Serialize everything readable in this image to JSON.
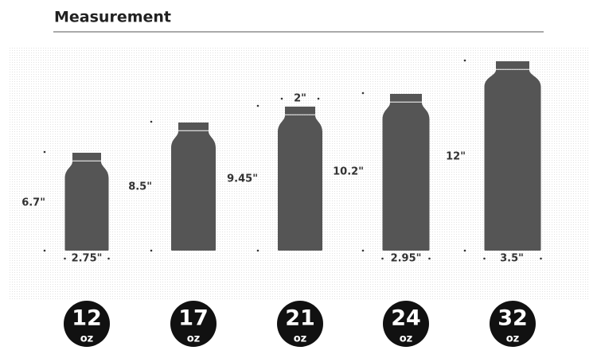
{
  "header": {
    "title": "Measurement"
  },
  "bottles": [
    {
      "height": "6.7\"",
      "width": "2.75\"",
      "capacity": "12",
      "unit": "oz"
    },
    {
      "height": "8.5\"",
      "capacity": "17",
      "unit": "oz"
    },
    {
      "height": "9.45\"",
      "width": "2\"",
      "capacity": "21",
      "unit": "oz"
    },
    {
      "height": "10.2\"",
      "width": "2.95\"",
      "capacity": "24",
      "unit": "oz"
    },
    {
      "height": "12\"",
      "width": "3.5\"",
      "capacity": "32",
      "unit": "oz"
    }
  ]
}
